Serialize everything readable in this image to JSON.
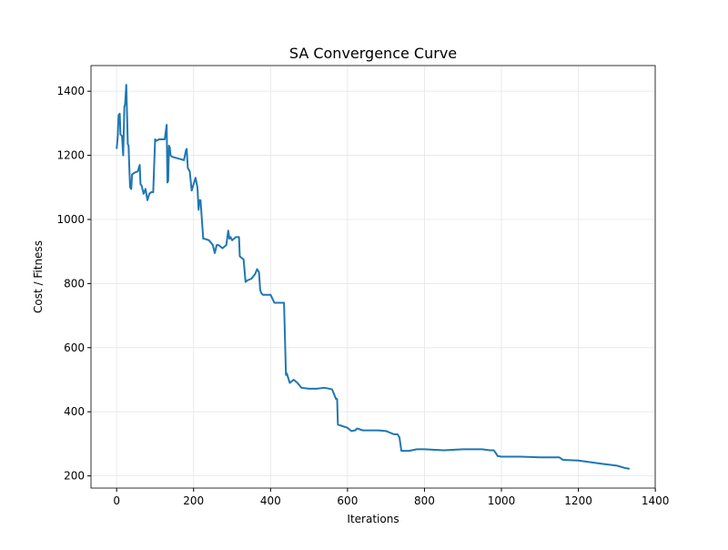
{
  "chart_data": {
    "type": "line",
    "title": "SA Convergence Curve",
    "x_label": "Iterations",
    "y_label": "Cost / Fitness",
    "x": [
      0,
      3,
      5,
      8,
      10,
      14,
      17,
      20,
      22,
      25,
      27,
      29,
      31,
      33,
      35,
      38,
      40,
      45,
      55,
      60,
      62,
      65,
      70,
      75,
      80,
      85,
      90,
      95,
      100,
      103,
      110,
      125,
      130,
      132,
      134,
      136,
      138,
      140,
      145,
      160,
      175,
      180,
      182,
      185,
      190,
      195,
      200,
      205,
      210,
      213,
      215,
      218,
      225,
      227,
      240,
      250,
      255,
      260,
      265,
      270,
      275,
      280,
      285,
      290,
      293,
      296,
      300,
      310,
      318,
      320,
      325,
      330,
      335,
      340,
      350,
      360,
      365,
      370,
      373,
      376,
      380,
      390,
      400,
      410,
      415,
      420,
      430,
      435,
      440,
      442,
      450,
      460,
      470,
      480,
      500,
      520,
      540,
      560,
      570,
      573,
      575,
      580,
      600,
      610,
      620,
      625,
      640,
      680,
      700,
      720,
      730,
      735,
      740,
      760,
      780,
      800,
      850,
      900,
      950,
      970,
      980,
      985,
      990,
      1000,
      1050,
      1100,
      1150,
      1160,
      1200,
      1230,
      1260,
      1300,
      1320,
      1333
    ],
    "series": [
      {
        "color": "#1f77b4",
        "values": [
          1220,
          1260,
          1325,
          1330,
          1265,
          1260,
          1200,
          1350,
          1360,
          1420,
          1330,
          1235,
          1230,
          1160,
          1100,
          1095,
          1140,
          1145,
          1150,
          1170,
          1110,
          1105,
          1080,
          1095,
          1060,
          1080,
          1085,
          1085,
          1250,
          1245,
          1250,
          1250,
          1295,
          1115,
          1120,
          1230,
          1225,
          1200,
          1195,
          1190,
          1185,
          1215,
          1220,
          1160,
          1150,
          1090,
          1110,
          1130,
          1100,
          1030,
          1060,
          1060,
          940,
          940,
          935,
          920,
          895,
          920,
          920,
          915,
          910,
          915,
          920,
          965,
          940,
          945,
          935,
          945,
          945,
          885,
          880,
          875,
          805,
          810,
          815,
          830,
          845,
          835,
          780,
          770,
          765,
          765,
          765,
          740,
          740,
          740,
          740,
          740,
          515,
          520,
          490,
          500,
          490,
          475,
          472,
          472,
          475,
          470,
          440,
          440,
          360,
          358,
          350,
          340,
          342,
          348,
          342,
          342,
          340,
          330,
          330,
          320,
          278,
          278,
          283,
          283,
          280,
          283,
          283,
          280,
          280,
          272,
          262,
          260,
          260,
          258,
          258,
          250,
          248,
          243,
          238,
          232,
          225,
          222
        ]
      }
    ],
    "xlim": [
      -66.65,
      1399.65
    ],
    "xticks": [
      0,
      200,
      400,
      600,
      800,
      1000,
      1200,
      1400
    ],
    "ylim": [
      162,
      1480
    ],
    "yticks": [
      200,
      400,
      600,
      800,
      1000,
      1200,
      1400
    ],
    "grid": true
  }
}
